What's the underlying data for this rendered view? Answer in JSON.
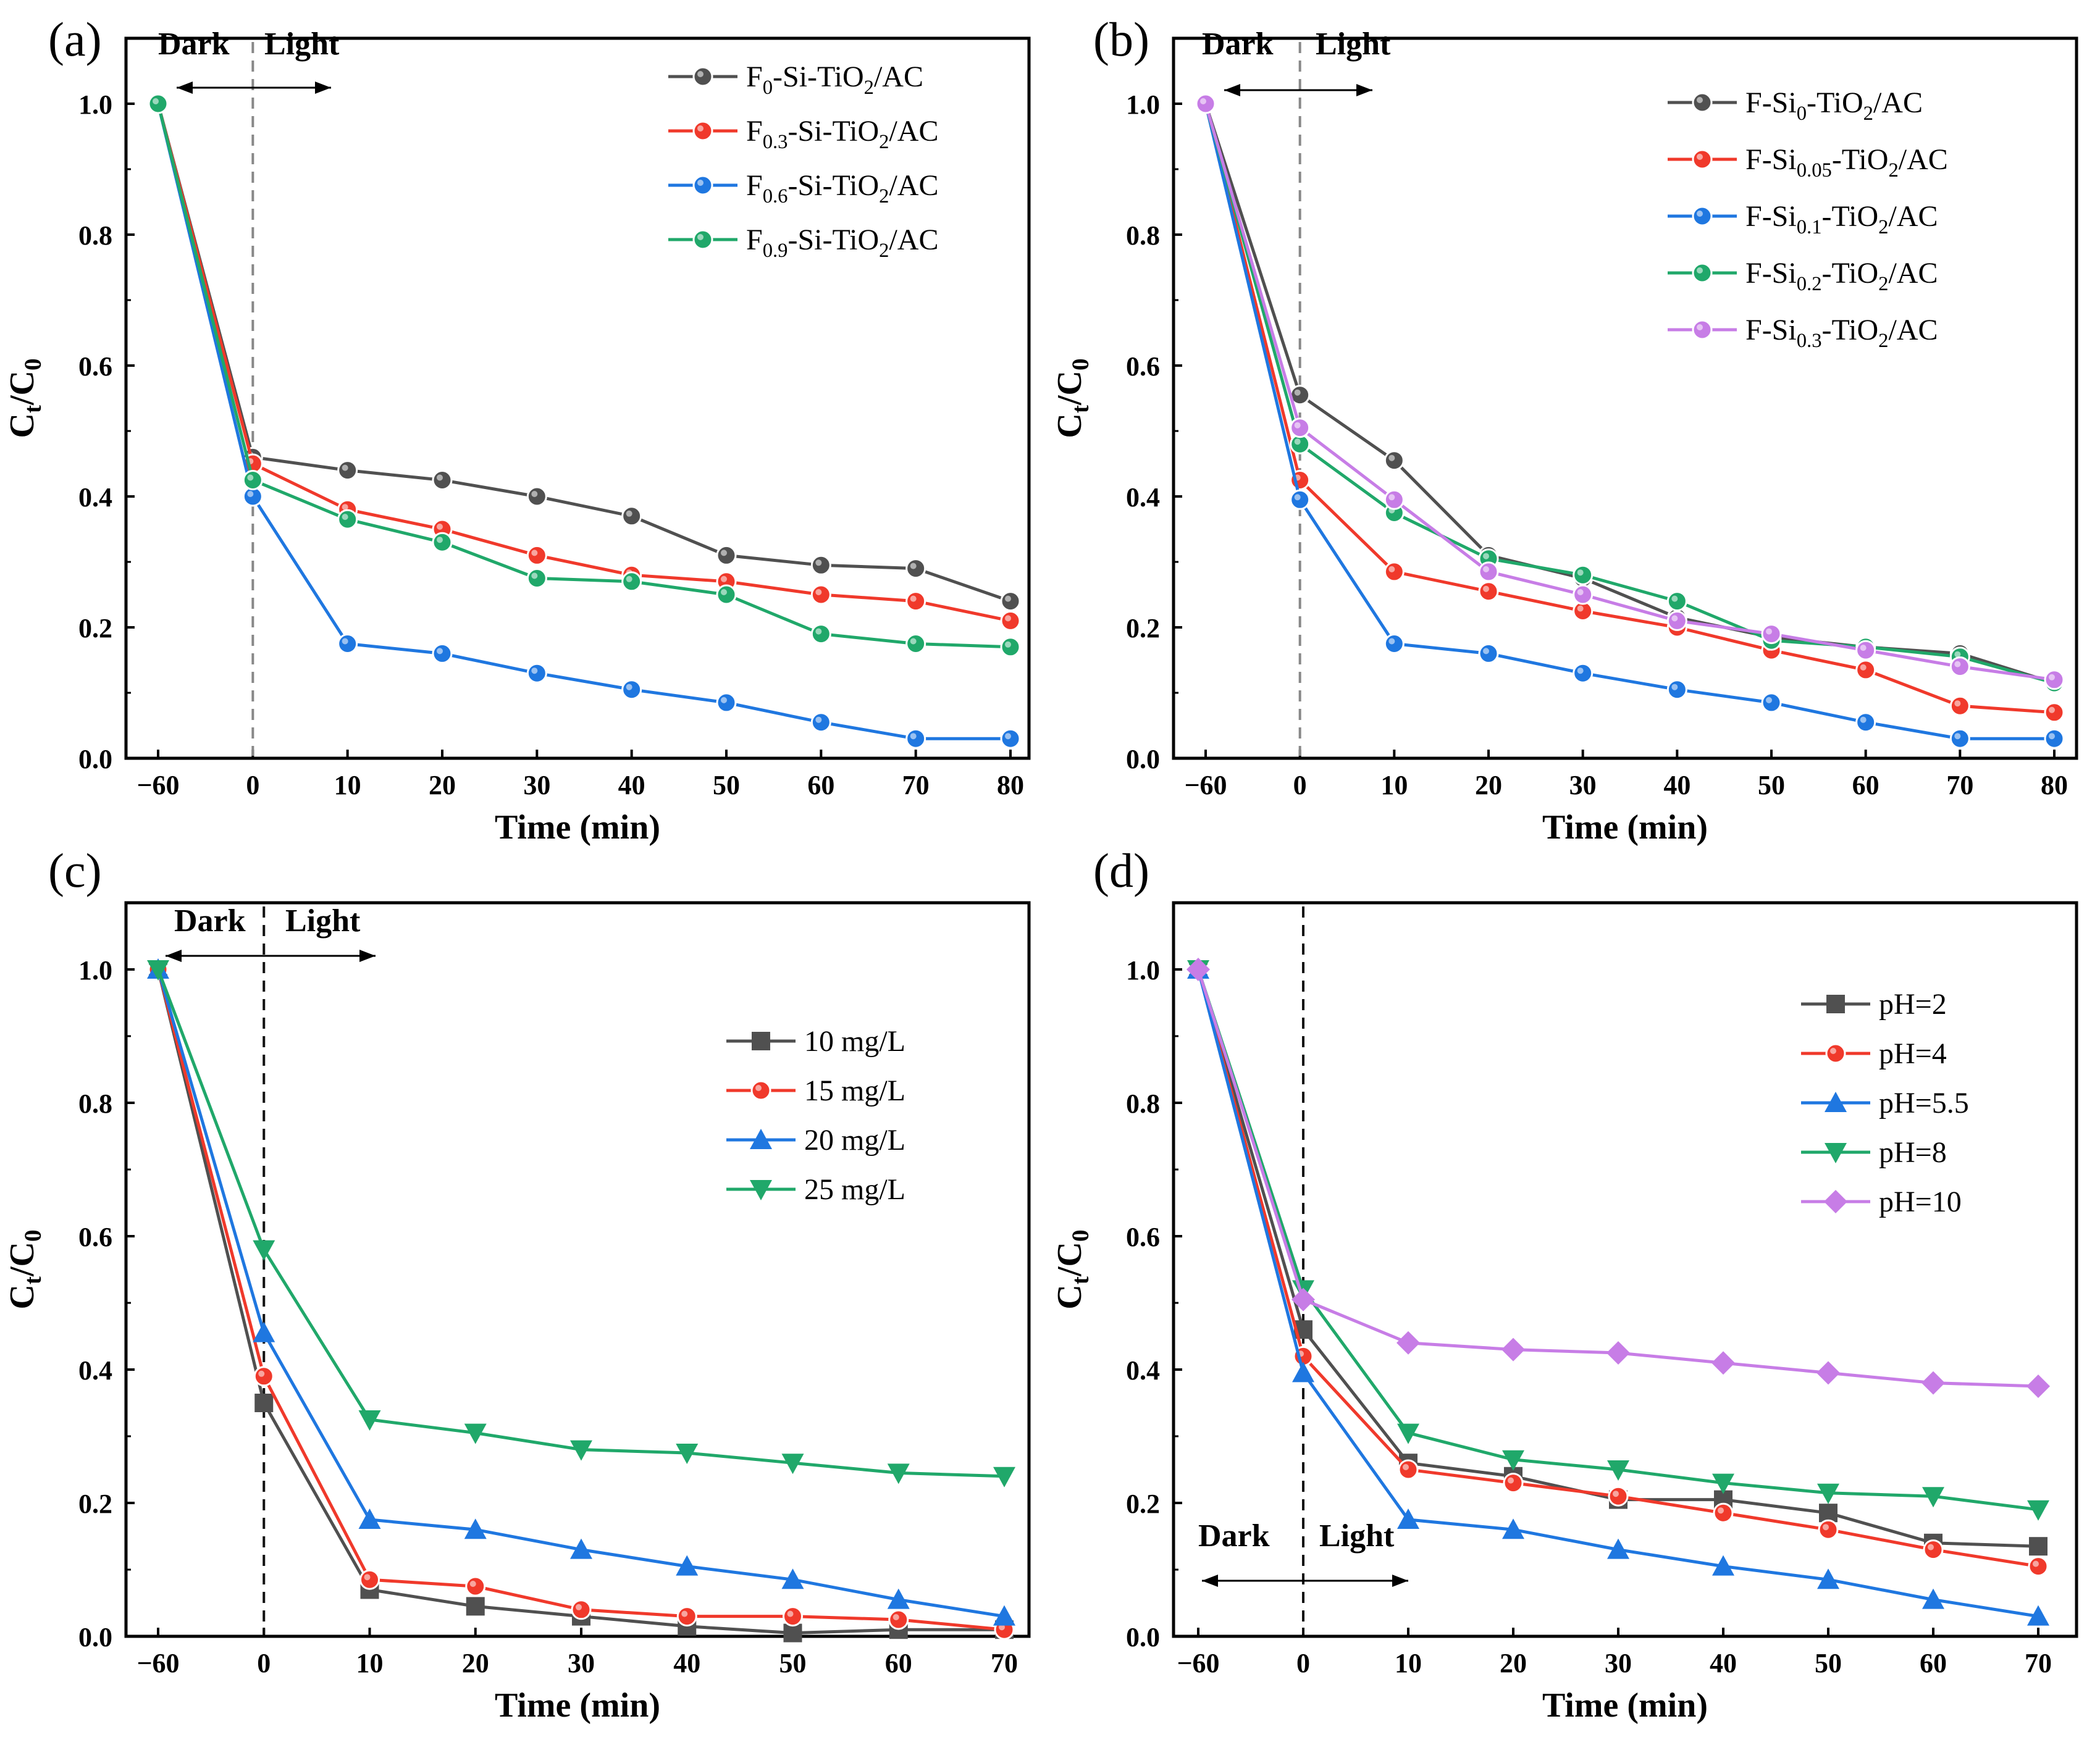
{
  "chart_data": [
    {
      "panel": "(a)",
      "type": "line",
      "marker": "circle",
      "xlabel": "Time (min)",
      "ylabel": "Ct/C0",
      "x": [
        -60,
        0,
        10,
        20,
        30,
        40,
        50,
        60,
        70,
        80
      ],
      "x_ticks": [
        "−60",
        "0",
        "10",
        "20",
        "30",
        "40",
        "50",
        "60",
        "70",
        "80"
      ],
      "y_ticks": [
        "0.0",
        "0.2",
        "0.4",
        "0.6",
        "0.8",
        "1.0"
      ],
      "ylim": [
        0,
        1.1
      ],
      "dark_label": "Dark",
      "light_label": "Light",
      "divider_style": "dashed-gray",
      "series": [
        {
          "name_parts": [
            "F",
            "0",
            "-Si-TiO",
            "2",
            "/AC"
          ],
          "color": "#505050",
          "values": [
            1.0,
            0.46,
            0.44,
            0.425,
            0.4,
            0.37,
            0.31,
            0.295,
            0.29,
            0.24
          ]
        },
        {
          "name_parts": [
            "F",
            "0.3",
            "-Si-TiO",
            "2",
            "/AC"
          ],
          "color": "#f0392b",
          "values": [
            1.0,
            0.45,
            0.38,
            0.35,
            0.31,
            0.28,
            0.27,
            0.25,
            0.24,
            0.21
          ]
        },
        {
          "name_parts": [
            "F",
            "0.6",
            "-Si-TiO",
            "2",
            "/AC"
          ],
          "color": "#1f77e0",
          "values": [
            1.0,
            0.4,
            0.175,
            0.16,
            0.13,
            0.105,
            0.085,
            0.055,
            0.03,
            0.03
          ]
        },
        {
          "name_parts": [
            "F",
            "0.9",
            "-Si-TiO",
            "2",
            "/AC"
          ],
          "color": "#20a86a",
          "values": [
            1.0,
            0.425,
            0.365,
            0.33,
            0.275,
            0.27,
            0.25,
            0.19,
            0.175,
            0.17
          ]
        }
      ]
    },
    {
      "panel": "(b)",
      "type": "line",
      "marker": "circle",
      "xlabel": "Time (min)",
      "ylabel": "Ct/C0",
      "x": [
        -60,
        0,
        10,
        20,
        30,
        40,
        50,
        60,
        70,
        80
      ],
      "x_ticks": [
        "−60",
        "0",
        "10",
        "20",
        "30",
        "40",
        "50",
        "60",
        "70",
        "80"
      ],
      "y_ticks": [
        "0.0",
        "0.2",
        "0.4",
        "0.6",
        "0.8",
        "1.0"
      ],
      "ylim": [
        0,
        1.1
      ],
      "dark_label": "Dark",
      "light_label": "Light",
      "divider_style": "dashed-gray",
      "series": [
        {
          "name_parts": [
            "F-Si",
            "0",
            "-TiO",
            "2",
            "/AC"
          ],
          "color": "#505050",
          "values": [
            1.0,
            0.555,
            0.455,
            0.31,
            0.275,
            0.215,
            0.185,
            0.17,
            0.16,
            0.115
          ]
        },
        {
          "name_parts": [
            "F-Si",
            "0.05",
            "-TiO",
            "2",
            "/AC"
          ],
          "color": "#f0392b",
          "values": [
            1.0,
            0.425,
            0.285,
            0.255,
            0.225,
            0.2,
            0.165,
            0.135,
            0.08,
            0.07
          ]
        },
        {
          "name_parts": [
            "F-Si",
            "0.1",
            "-TiO",
            "2",
            "/AC"
          ],
          "color": "#1f77e0",
          "values": [
            1.0,
            0.395,
            0.175,
            0.16,
            0.13,
            0.105,
            0.085,
            0.055,
            0.03,
            0.03
          ]
        },
        {
          "name_parts": [
            "F-Si",
            "0.2",
            "-TiO",
            "2",
            "/AC"
          ],
          "color": "#20a86a",
          "values": [
            1.0,
            0.48,
            0.375,
            0.305,
            0.28,
            0.24,
            0.18,
            0.17,
            0.155,
            0.115
          ]
        },
        {
          "name_parts": [
            "F-Si",
            "0.3",
            "-TiO",
            "2",
            "/AC"
          ],
          "color": "#c77de6",
          "values": [
            1.0,
            0.505,
            0.395,
            0.285,
            0.25,
            0.21,
            0.19,
            0.165,
            0.14,
            0.12
          ]
        }
      ]
    },
    {
      "panel": "(c)",
      "type": "line",
      "xlabel": "Time (min)",
      "ylabel": "Ct/C0",
      "x": [
        -60,
        0,
        10,
        20,
        30,
        40,
        50,
        60,
        70
      ],
      "x_ticks": [
        "−60",
        "0",
        "10",
        "20",
        "30",
        "40",
        "50",
        "60",
        "70"
      ],
      "y_ticks": [
        "0.0",
        "0.2",
        "0.4",
        "0.6",
        "0.8",
        "1.0"
      ],
      "ylim": [
        0,
        1.1
      ],
      "dark_label": "Dark",
      "light_label": "Light",
      "divider_style": "dashed-black",
      "series": [
        {
          "name_parts": [
            "10 mg/L"
          ],
          "marker": "square",
          "color": "#505050",
          "values": [
            1.0,
            0.35,
            0.07,
            0.045,
            0.03,
            0.015,
            0.005,
            0.01,
            0.01
          ]
        },
        {
          "name_parts": [
            "15 mg/L"
          ],
          "marker": "circle",
          "color": "#f0392b",
          "values": [
            1.0,
            0.39,
            0.085,
            0.075,
            0.04,
            0.03,
            0.03,
            0.025,
            0.01
          ]
        },
        {
          "name_parts": [
            "20 mg/L"
          ],
          "marker": "triangle-up",
          "color": "#1f77e0",
          "values": [
            1.0,
            0.455,
            0.175,
            0.16,
            0.13,
            0.105,
            0.085,
            0.055,
            0.03
          ]
        },
        {
          "name_parts": [
            "25 mg/L"
          ],
          "marker": "triangle-down",
          "color": "#20a86a",
          "values": [
            1.0,
            0.58,
            0.325,
            0.305,
            0.28,
            0.275,
            0.26,
            0.245,
            0.24
          ]
        }
      ]
    },
    {
      "panel": "(d)",
      "type": "line",
      "xlabel": "Time (min)",
      "ylabel": "Ct/C0",
      "x": [
        -60,
        0,
        10,
        20,
        30,
        40,
        50,
        60,
        70
      ],
      "x_ticks": [
        "−60",
        "0",
        "10",
        "20",
        "30",
        "40",
        "50",
        "60",
        "70"
      ],
      "y_ticks": [
        "0.0",
        "0.2",
        "0.4",
        "0.6",
        "0.8",
        "1.0"
      ],
      "ylim": [
        0,
        1.1
      ],
      "dark_label": "Dark",
      "light_label": "Light",
      "divider_style": "dashed-black",
      "series": [
        {
          "name_parts": [
            "pH=2"
          ],
          "marker": "square",
          "color": "#505050",
          "values": [
            1.0,
            0.46,
            0.26,
            0.24,
            0.205,
            0.205,
            0.185,
            0.14,
            0.135
          ]
        },
        {
          "name_parts": [
            "pH=4"
          ],
          "marker": "circle",
          "color": "#f0392b",
          "values": [
            1.0,
            0.42,
            0.25,
            0.23,
            0.21,
            0.185,
            0.16,
            0.13,
            0.105
          ]
        },
        {
          "name_parts": [
            "pH=5.5"
          ],
          "marker": "triangle-up",
          "color": "#1f77e0",
          "values": [
            1.0,
            0.395,
            0.175,
            0.16,
            0.13,
            0.105,
            0.085,
            0.055,
            0.03
          ]
        },
        {
          "name_parts": [
            "pH=8"
          ],
          "marker": "triangle-down",
          "color": "#20a86a",
          "values": [
            1.0,
            0.52,
            0.305,
            0.265,
            0.25,
            0.23,
            0.215,
            0.21,
            0.19
          ]
        },
        {
          "name_parts": [
            "pH=10"
          ],
          "marker": "diamond",
          "color": "#c77de6",
          "values": [
            1.0,
            0.505,
            0.44,
            0.43,
            0.425,
            0.41,
            0.395,
            0.38,
            0.375
          ]
        }
      ]
    }
  ]
}
